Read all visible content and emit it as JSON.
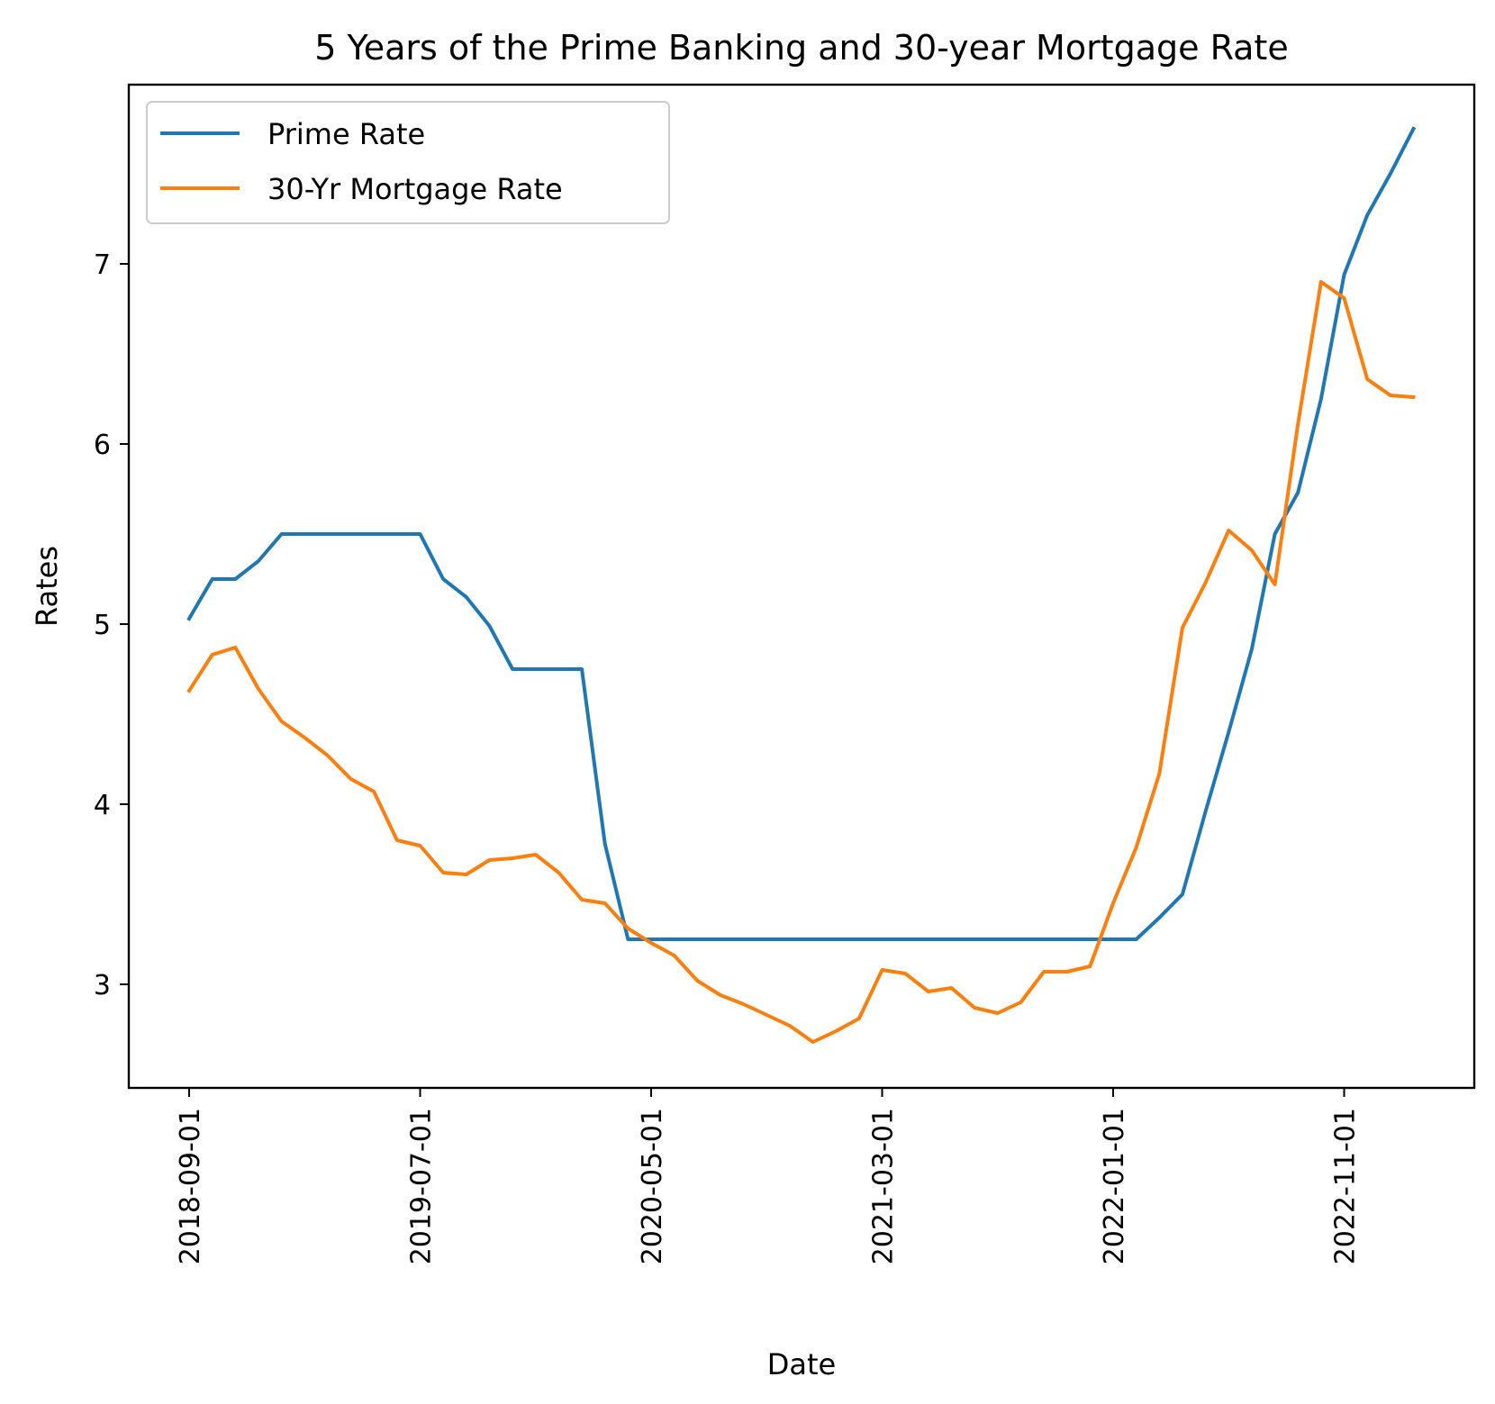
{
  "chart_data": {
    "type": "line",
    "title": "5 Years of the Prime Banking and 30-year Mortgage Rate",
    "xlabel": "Date",
    "ylabel": "Rates",
    "x": [
      "2018-09-01",
      "2018-10-01",
      "2018-11-01",
      "2018-12-01",
      "2019-01-01",
      "2019-02-01",
      "2019-03-01",
      "2019-04-01",
      "2019-05-01",
      "2019-06-01",
      "2019-07-01",
      "2019-08-01",
      "2019-09-01",
      "2019-10-01",
      "2019-11-01",
      "2019-12-01",
      "2020-01-01",
      "2020-02-01",
      "2020-03-01",
      "2020-04-01",
      "2020-05-01",
      "2020-06-01",
      "2020-07-01",
      "2020-08-01",
      "2020-09-01",
      "2020-10-01",
      "2020-11-01",
      "2020-12-01",
      "2021-01-01",
      "2021-02-01",
      "2021-03-01",
      "2021-04-01",
      "2021-05-01",
      "2021-06-01",
      "2021-07-01",
      "2021-08-01",
      "2021-09-01",
      "2021-10-01",
      "2021-11-01",
      "2021-12-01",
      "2022-01-01",
      "2022-02-01",
      "2022-03-01",
      "2022-04-01",
      "2022-05-01",
      "2022-06-01",
      "2022-07-01",
      "2022-08-01",
      "2022-09-01",
      "2022-10-01",
      "2022-11-01",
      "2022-12-01",
      "2023-01-01",
      "2023-02-01"
    ],
    "x_ticks": [
      "2018-09-01",
      "2019-07-01",
      "2020-05-01",
      "2021-03-01",
      "2022-01-01",
      "2022-11-01"
    ],
    "y_ticks": [
      3,
      4,
      5,
      6,
      7
    ],
    "ylim": [
      2.43,
      7.99
    ],
    "grid": false,
    "legend_position": "upper left",
    "series": [
      {
        "name": "Prime Rate",
        "color": "#1f77b4",
        "values": [
          5.03,
          5.25,
          5.25,
          5.35,
          5.5,
          5.5,
          5.5,
          5.5,
          5.5,
          5.5,
          5.5,
          5.25,
          5.15,
          4.99,
          4.75,
          4.75,
          4.75,
          4.75,
          3.78,
          3.25,
          3.25,
          3.25,
          3.25,
          3.25,
          3.25,
          3.25,
          3.25,
          3.25,
          3.25,
          3.25,
          3.25,
          3.25,
          3.25,
          3.25,
          3.25,
          3.25,
          3.25,
          3.25,
          3.25,
          3.25,
          3.25,
          3.25,
          3.37,
          3.5,
          3.96,
          4.4,
          4.86,
          5.5,
          5.73,
          6.25,
          6.94,
          7.27,
          7.5,
          7.75
        ]
      },
      {
        "name": "30-Yr Mortgage Rate",
        "color": "#ff7f0e",
        "values": [
          4.63,
          4.83,
          4.87,
          4.64,
          4.46,
          4.37,
          4.27,
          4.14,
          4.07,
          3.8,
          3.77,
          3.62,
          3.61,
          3.69,
          3.7,
          3.72,
          3.62,
          3.47,
          3.45,
          3.31,
          3.23,
          3.16,
          3.02,
          2.94,
          2.89,
          2.83,
          2.77,
          2.68,
          2.74,
          2.81,
          3.08,
          3.06,
          2.96,
          2.98,
          2.87,
          2.84,
          2.9,
          3.07,
          3.07,
          3.1,
          3.45,
          3.76,
          4.17,
          4.98,
          5.23,
          5.52,
          5.41,
          5.22,
          6.11,
          6.9,
          6.81,
          6.36,
          6.27,
          6.26
        ]
      }
    ]
  }
}
